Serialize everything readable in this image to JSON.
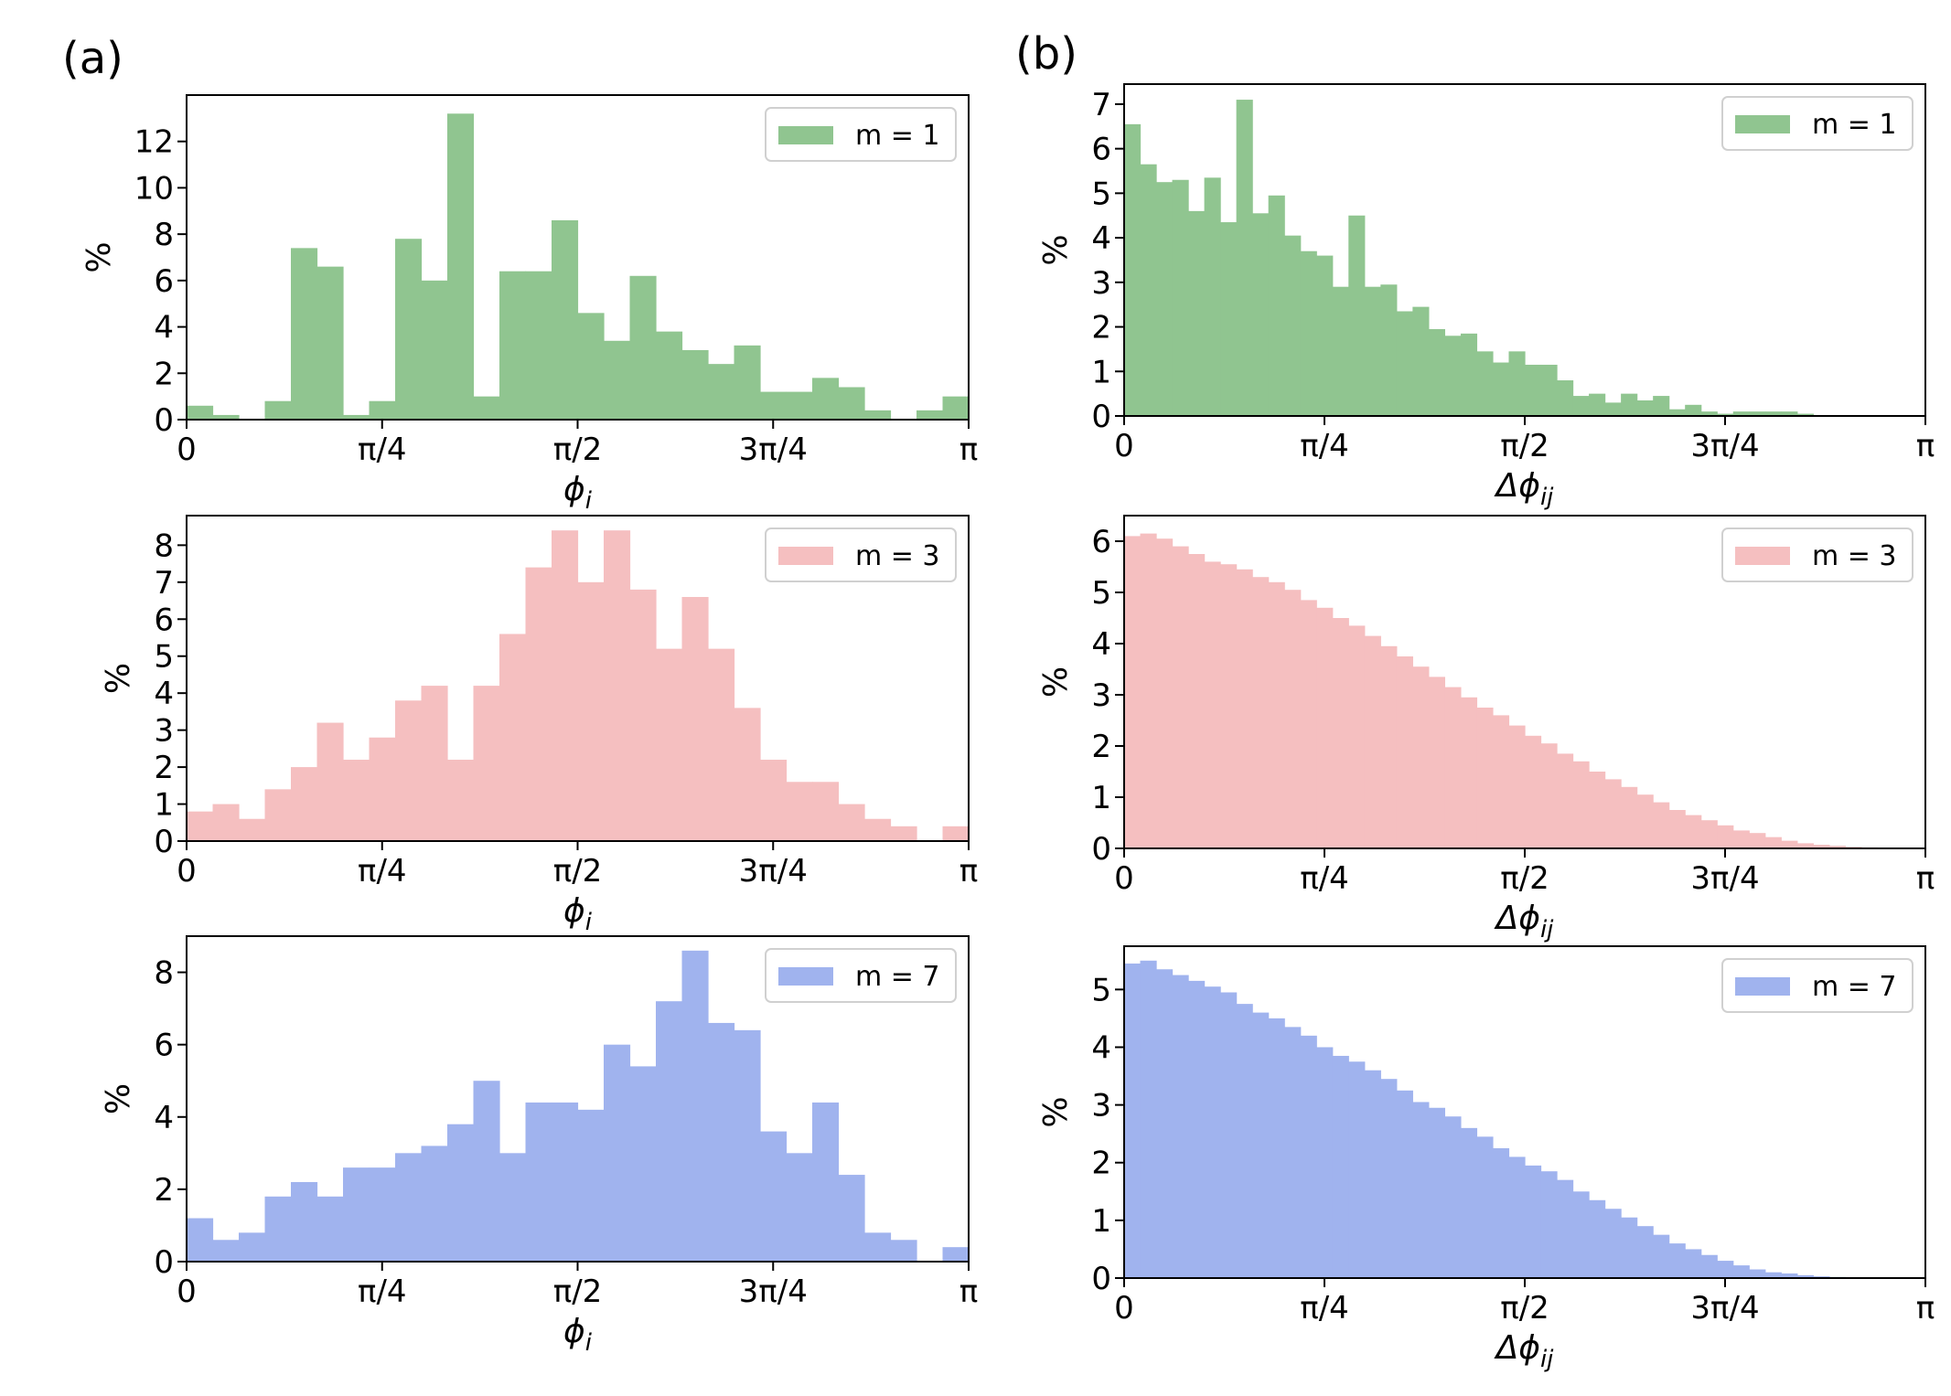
{
  "figure": {
    "panel_labels": [
      "(a)",
      "(b)"
    ]
  },
  "chart_data": [
    {
      "type": "bar",
      "panel": "(a)",
      "row": 0,
      "color": "#90c590",
      "legend": "m = 1",
      "xlabel": "ϕi",
      "ylabel": "%",
      "xlim": [
        0,
        3.14159
      ],
      "ylim": [
        0,
        14
      ],
      "xticks": [
        "0",
        "π/4",
        "π/2",
        "3π/4",
        "π"
      ],
      "yticks": [
        0,
        2,
        4,
        6,
        8,
        10,
        12
      ],
      "values": [
        0.6,
        0.2,
        0,
        0.8,
        7.4,
        6.6,
        0.2,
        0.8,
        7.8,
        6.0,
        13.2,
        1.0,
        6.4,
        6.4,
        8.6,
        4.6,
        3.4,
        6.2,
        3.8,
        3.0,
        2.4,
        3.2,
        1.2,
        1.2,
        1.8,
        1.4,
        0.4,
        0,
        0.4,
        1.0
      ]
    },
    {
      "type": "bar",
      "panel": "(a)",
      "row": 1,
      "color": "#f5bfc0",
      "legend": "m = 3",
      "xlabel": "ϕi",
      "ylabel": "%",
      "xlim": [
        0,
        3.14159
      ],
      "ylim": [
        0,
        8.8
      ],
      "xticks": [
        "0",
        "π/4",
        "π/2",
        "3π/4",
        "π"
      ],
      "yticks": [
        0,
        1,
        2,
        3,
        4,
        5,
        6,
        7,
        8
      ],
      "values": [
        0.8,
        1.0,
        0.6,
        1.4,
        2.0,
        3.2,
        2.2,
        2.8,
        3.8,
        4.2,
        2.2,
        4.2,
        5.6,
        7.4,
        8.4,
        7.0,
        8.4,
        6.8,
        5.2,
        6.6,
        5.2,
        3.6,
        2.2,
        1.6,
        1.6,
        1.0,
        0.6,
        0.4,
        0,
        0.4
      ]
    },
    {
      "type": "bar",
      "panel": "(a)",
      "row": 2,
      "color": "#a0b3ee",
      "legend": "m = 7",
      "xlabel": "ϕi",
      "ylabel": "%",
      "xlim": [
        0,
        3.14159
      ],
      "ylim": [
        0,
        9
      ],
      "xticks": [
        "0",
        "π/4",
        "π/2",
        "3π/4",
        "π"
      ],
      "yticks": [
        0,
        2,
        4,
        6,
        8
      ],
      "values": [
        1.2,
        0.6,
        0.8,
        1.8,
        2.2,
        1.8,
        2.6,
        2.6,
        3.0,
        3.2,
        3.8,
        5.0,
        3.0,
        4.4,
        4.4,
        4.2,
        6.0,
        5.4,
        7.2,
        8.6,
        6.6,
        6.4,
        3.6,
        3.0,
        4.4,
        2.4,
        0.8,
        0.6,
        0,
        0.4
      ]
    },
    {
      "type": "bar",
      "panel": "(b)",
      "row": 0,
      "color": "#90c590",
      "legend": "m = 1",
      "xlabel": "Δϕij",
      "ylabel": "%",
      "xlim": [
        0,
        3.14159
      ],
      "ylim": [
        0,
        7.45
      ],
      "xticks": [
        "0",
        "π/4",
        "π/2",
        "3π/4",
        "π"
      ],
      "yticks": [
        0,
        1,
        2,
        3,
        4,
        5,
        6,
        7
      ],
      "values": [
        6.55,
        5.65,
        5.25,
        5.3,
        4.6,
        5.35,
        4.35,
        7.1,
        4.55,
        4.95,
        4.05,
        3.7,
        3.6,
        2.9,
        4.5,
        2.9,
        2.95,
        2.35,
        2.45,
        1.95,
        1.8,
        1.85,
        1.45,
        1.2,
        1.45,
        1.15,
        1.15,
        0.8,
        0.45,
        0.5,
        0.3,
        0.5,
        0.35,
        0.45,
        0.15,
        0.25,
        0.1,
        0.05,
        0.1,
        0.1,
        0.1,
        0.1,
        0.05,
        0,
        0,
        0,
        0,
        0,
        0,
        0
      ]
    },
    {
      "type": "bar",
      "panel": "(b)",
      "row": 1,
      "color": "#f5bfc0",
      "legend": "m = 3",
      "xlabel": "Δϕij",
      "ylabel": "%",
      "xlim": [
        0,
        3.14159
      ],
      "ylim": [
        0,
        6.5
      ],
      "xticks": [
        "0",
        "π/4",
        "π/2",
        "3π/4",
        "π"
      ],
      "yticks": [
        0,
        1,
        2,
        3,
        4,
        5,
        6
      ],
      "values": [
        6.1,
        6.15,
        6.05,
        5.9,
        5.75,
        5.6,
        5.55,
        5.45,
        5.3,
        5.2,
        5.05,
        4.85,
        4.7,
        4.5,
        4.35,
        4.15,
        3.95,
        3.75,
        3.55,
        3.35,
        3.15,
        2.95,
        2.75,
        2.6,
        2.4,
        2.2,
        2.05,
        1.85,
        1.7,
        1.5,
        1.35,
        1.2,
        1.05,
        0.9,
        0.75,
        0.65,
        0.55,
        0.45,
        0.35,
        0.3,
        0.22,
        0.15,
        0.1,
        0.07,
        0.05,
        0.03,
        0.02,
        0.01,
        0,
        0
      ]
    },
    {
      "type": "bar",
      "panel": "(b)",
      "row": 2,
      "color": "#a0b3ee",
      "legend": "m = 7",
      "xlabel": "Δϕij",
      "ylabel": "%",
      "xlim": [
        0,
        3.14159
      ],
      "ylim": [
        0,
        5.75
      ],
      "xticks": [
        "0",
        "π/4",
        "π/2",
        "3π/4",
        "π"
      ],
      "yticks": [
        0,
        1,
        2,
        3,
        4,
        5
      ],
      "values": [
        5.45,
        5.5,
        5.35,
        5.25,
        5.15,
        5.05,
        4.95,
        4.75,
        4.6,
        4.5,
        4.35,
        4.2,
        4.0,
        3.85,
        3.75,
        3.6,
        3.45,
        3.25,
        3.05,
        2.95,
        2.8,
        2.6,
        2.45,
        2.25,
        2.1,
        1.95,
        1.85,
        1.7,
        1.5,
        1.35,
        1.2,
        1.05,
        0.9,
        0.75,
        0.6,
        0.5,
        0.4,
        0.3,
        0.22,
        0.15,
        0.1,
        0.08,
        0.05,
        0.03,
        0.02,
        0.01,
        0.01,
        0,
        0,
        0
      ]
    }
  ]
}
